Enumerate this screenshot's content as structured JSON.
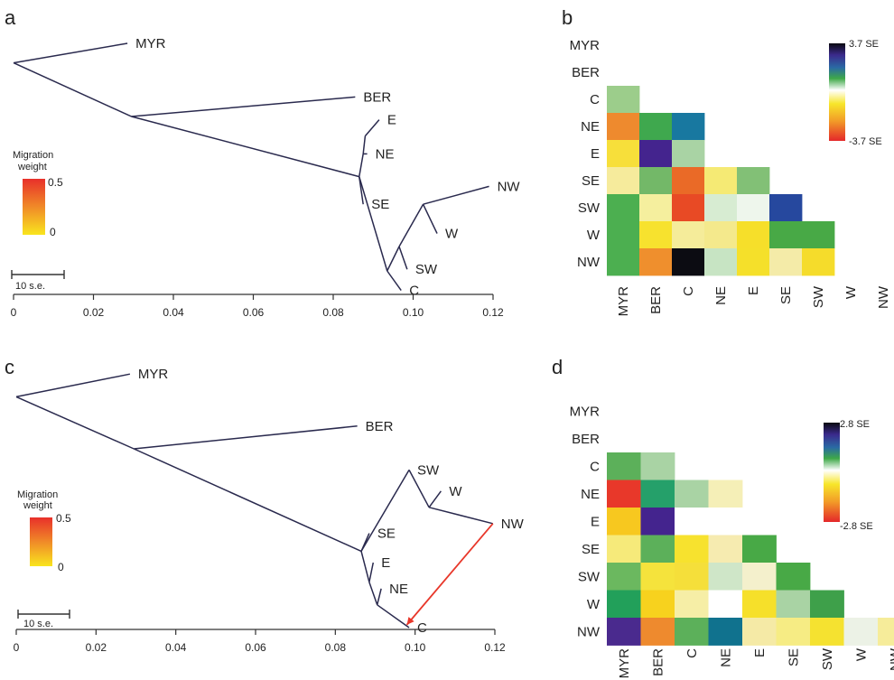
{
  "chart_data": [
    {
      "panel": "a",
      "type": "tree",
      "leaves": [
        "MYR",
        "BER",
        "E",
        "NE",
        "SE",
        "NW",
        "W",
        "SW",
        "C"
      ],
      "xticks": [
        "0",
        "0.02",
        "0.04",
        "0.06",
        "0.08",
        "0.10",
        "0.12"
      ],
      "xlim": [
        0,
        0.12
      ],
      "drift_nodes": [
        {
          "id": "root",
          "x": 0.0,
          "y": 0.7
        },
        {
          "id": "n1",
          "x": 0.0295,
          "y": 4.0
        },
        {
          "id": "n2",
          "x": 0.0865,
          "y": 7.7
        },
        {
          "id": "n3",
          "x": 0.0875,
          "y": 6.3
        },
        {
          "id": "n4",
          "x": 0.088,
          "y": 5.2
        },
        {
          "id": "n5",
          "x": 0.0935,
          "y": 13.5
        },
        {
          "id": "n6",
          "x": 0.0965,
          "y": 12.0
        },
        {
          "id": "n7",
          "x": 0.1025,
          "y": 9.4
        }
      ],
      "drift_leaves": [
        {
          "name": "MYR",
          "x": 0.0285,
          "y": -0.5,
          "parent": "root"
        },
        {
          "name": "BER",
          "x": 0.0855,
          "y": 2.8,
          "parent": "n1"
        },
        {
          "name": "E",
          "x": 0.0915,
          "y": 4.2,
          "parent": "n4"
        },
        {
          "name": "NE",
          "x": 0.0885,
          "y": 6.3,
          "parent": "n3"
        },
        {
          "name": "SE",
          "x": 0.0875,
          "y": 9.4,
          "parent": "n2"
        },
        {
          "name": "NW",
          "x": 0.119,
          "y": 8.3,
          "parent": "n7"
        },
        {
          "name": "W",
          "x": 0.106,
          "y": 11.2,
          "parent": "n7"
        },
        {
          "name": "SW",
          "x": 0.0985,
          "y": 13.4,
          "parent": "n6"
        },
        {
          "name": "C",
          "x": 0.097,
          "y": 14.7,
          "parent": "n5"
        }
      ],
      "drift_edges": [
        [
          "root",
          "n1"
        ],
        [
          "n1",
          "n2"
        ],
        [
          "n2",
          "n3"
        ],
        [
          "n3",
          "n4"
        ],
        [
          "n2",
          "n5"
        ],
        [
          "n5",
          "n6"
        ],
        [
          "n6",
          "n7"
        ]
      ],
      "migration_legend": {
        "title": "Migration weight",
        "max": "0.5",
        "min": "0"
      },
      "scale_bar": "10 s.e."
    },
    {
      "panel": "b",
      "type": "heatmap",
      "rows": [
        "MYR",
        "BER",
        "C",
        "NE",
        "E",
        "SE",
        "SW",
        "W",
        "NW"
      ],
      "cols": [
        "MYR",
        "BER",
        "C",
        "NE",
        "E",
        "SE",
        "SW",
        "W",
        "NW"
      ],
      "colorbar": {
        "max_label": "3.7 SE",
        "min_label": "-3.7 SE",
        "max": 3.7,
        "min": -3.7
      },
      "cell_colors": [
        [],
        [],
        [
          "#9ccd8b"
        ],
        [
          "#ee8a2e",
          "#3fa84e",
          "#1878a0"
        ],
        [
          "#f7df3a",
          "#44248e",
          "#a9d3a4"
        ],
        [
          "#f6eb9c",
          "#73b868",
          "#ea6a27",
          "#f5ea74",
          "#82c076"
        ],
        [
          "#4caf50",
          "#f5ef9e",
          "#e84a25",
          "#d7ecd2",
          "#eef6ec",
          "#26489e"
        ],
        [
          "#4caf50",
          "#f7e22e",
          "#f5ec9a",
          "#f4e98c",
          "#f6df2a",
          "#48a946",
          "#48a946"
        ],
        [
          "#4caf50",
          "#ef8f2d",
          "#0c0c12",
          "#c7e4c3",
          "#f5e02a",
          "#f4eba8",
          "#f5dc2b"
        ]
      ]
    },
    {
      "panel": "c",
      "type": "tree",
      "leaves": [
        "MYR",
        "BER",
        "SW",
        "W",
        "NW",
        "SE",
        "E",
        "NE",
        "C"
      ],
      "xticks": [
        "0",
        "0.02",
        "0.04",
        "0.06",
        "0.08",
        "0.10",
        "0.12"
      ],
      "xlim": [
        0,
        0.12
      ],
      "drift_nodes": [
        {
          "id": "root",
          "x": 0.0,
          "y": 0.8
        },
        {
          "id": "n1",
          "x": 0.0295,
          "y": 4.0
        },
        {
          "id": "n2",
          "x": 0.0865,
          "y": 10.3
        },
        {
          "id": "n3",
          "x": 0.0885,
          "y": 12.2
        },
        {
          "id": "n4",
          "x": 0.0905,
          "y": 13.6
        },
        {
          "id": "n5",
          "x": 0.1035,
          "y": 7.6
        }
      ],
      "drift_leaves": [
        {
          "name": "MYR",
          "x": 0.0285,
          "y": -0.6,
          "parent": "root"
        },
        {
          "name": "BER",
          "x": 0.0855,
          "y": 2.6,
          "parent": "n1"
        },
        {
          "name": "SW",
          "x": 0.0985,
          "y": 5.3,
          "parent": "n2"
        },
        {
          "name": "W",
          "x": 0.1065,
          "y": 6.6,
          "parent": "n5"
        },
        {
          "name": "NW",
          "x": 0.1195,
          "y": 8.6,
          "parent": "n5"
        },
        {
          "name": "SE",
          "x": 0.0885,
          "y": 9.2,
          "parent": "n2"
        },
        {
          "name": "E",
          "x": 0.0895,
          "y": 11.0,
          "parent": "n3"
        },
        {
          "name": "NE",
          "x": 0.0915,
          "y": 12.6,
          "parent": "n4"
        },
        {
          "name": "C",
          "x": 0.0985,
          "y": 15.0,
          "parent": "n4"
        }
      ],
      "drift_edges": [
        [
          "root",
          "n1"
        ],
        [
          "n1",
          "n2"
        ],
        [
          "n2",
          "n3"
        ],
        [
          "n3",
          "n4"
        ],
        [
          "n5",
          "SW"
        ]
      ],
      "migration_edges": [
        {
          "from": "NW",
          "to": "C",
          "weight": 0.5
        }
      ],
      "migration_legend": {
        "title": "Migration weight",
        "max": "0.5",
        "min": "0"
      },
      "scale_bar": "10 s.e."
    },
    {
      "panel": "d",
      "type": "heatmap",
      "rows": [
        "MYR",
        "BER",
        "C",
        "NE",
        "E",
        "SE",
        "SW",
        "W",
        "NW"
      ],
      "cols": [
        "MYR",
        "BER",
        "C",
        "NE",
        "E",
        "SE",
        "SW",
        "W",
        "NW"
      ],
      "colorbar": {
        "max_label": "2.8 SE",
        "min_label": "-2.8 SE",
        "max": 2.8,
        "min": -2.8
      },
      "cell_colors": [
        [],
        [],
        [
          "#5cb05a",
          "#a9d3a4"
        ],
        [
          "#e8382a",
          "#25a06a",
          "#a9d3a4",
          "#f5efb7"
        ],
        [
          "#f7c81f",
          "#44248e",
          "#ffffff",
          "#ffffff"
        ],
        [
          "#f6ea7a",
          "#5cb05a",
          "#f7e22e",
          "#f6ebb0",
          "#48a946"
        ],
        [
          "#6bb85f",
          "#f5e33c",
          "#f5df3a",
          "#cfe6c8",
          "#f4f0cc",
          "#48a946"
        ],
        [
          "#22a05a",
          "#f7d21e",
          "#f6eea6",
          "#ffffff",
          "#f6e02a",
          "#a9d3a4",
          "#3ea04a"
        ],
        [
          "#4a2a8e",
          "#ee8a2e",
          "#5cb05a",
          "#10728e",
          "#f5eaa6",
          "#f6ec84",
          "#f5e230",
          "#ecf2e6",
          "#f6ec9a"
        ]
      ]
    }
  ]
}
